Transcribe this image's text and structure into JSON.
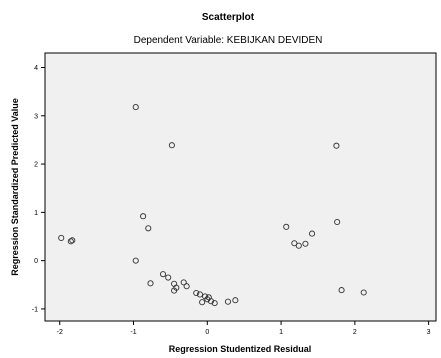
{
  "chart_data": {
    "type": "scatter",
    "title": "Scatterplot",
    "subtitle": "Dependent Variable: KEBIJKAN DEVIDEN",
    "xlabel": "Regression Studentized Residual",
    "ylabel": "Regression Standardized Predicted Value",
    "xlim": [
      -2.2,
      3.1
    ],
    "ylim": [
      -1.25,
      4.3
    ],
    "x_ticks": [
      -2,
      -1,
      0,
      1,
      2,
      3
    ],
    "y_ticks": [
      -1,
      0,
      1,
      2,
      3,
      4
    ],
    "grid": false,
    "colors": {
      "plot_bg": "#f0f0f0",
      "marker": "#333333",
      "frame": "#000000"
    },
    "points": [
      {
        "x": -1.98,
        "y": 0.47
      },
      {
        "x": -1.85,
        "y": 0.4
      },
      {
        "x": -1.83,
        "y": 0.42
      },
      {
        "x": -0.97,
        "y": 3.18
      },
      {
        "x": -0.97,
        "y": 0.0
      },
      {
        "x": -0.87,
        "y": 0.92
      },
      {
        "x": -0.8,
        "y": 0.67
      },
      {
        "x": -0.77,
        "y": -0.47
      },
      {
        "x": -0.6,
        "y": -0.28
      },
      {
        "x": -0.53,
        "y": -0.35
      },
      {
        "x": -0.48,
        "y": 2.39
      },
      {
        "x": -0.45,
        "y": -0.48
      },
      {
        "x": -0.45,
        "y": -0.62
      },
      {
        "x": -0.42,
        "y": -0.56
      },
      {
        "x": -0.32,
        "y": -0.45
      },
      {
        "x": -0.28,
        "y": -0.53
      },
      {
        "x": -0.15,
        "y": -0.67
      },
      {
        "x": -0.1,
        "y": -0.7
      },
      {
        "x": -0.07,
        "y": -0.86
      },
      {
        "x": -0.03,
        "y": -0.74
      },
      {
        "x": 0.0,
        "y": -0.8
      },
      {
        "x": 0.02,
        "y": -0.76
      },
      {
        "x": 0.05,
        "y": -0.84
      },
      {
        "x": 0.1,
        "y": -0.88
      },
      {
        "x": 0.28,
        "y": -0.85
      },
      {
        "x": 0.38,
        "y": -0.82
      },
      {
        "x": 1.07,
        "y": 0.7
      },
      {
        "x": 1.18,
        "y": 0.36
      },
      {
        "x": 1.24,
        "y": 0.31
      },
      {
        "x": 1.33,
        "y": 0.35
      },
      {
        "x": 1.42,
        "y": 0.56
      },
      {
        "x": 1.75,
        "y": 2.38
      },
      {
        "x": 1.76,
        "y": 0.8
      },
      {
        "x": 1.82,
        "y": -0.61
      },
      {
        "x": 2.12,
        "y": -0.66
      }
    ]
  }
}
